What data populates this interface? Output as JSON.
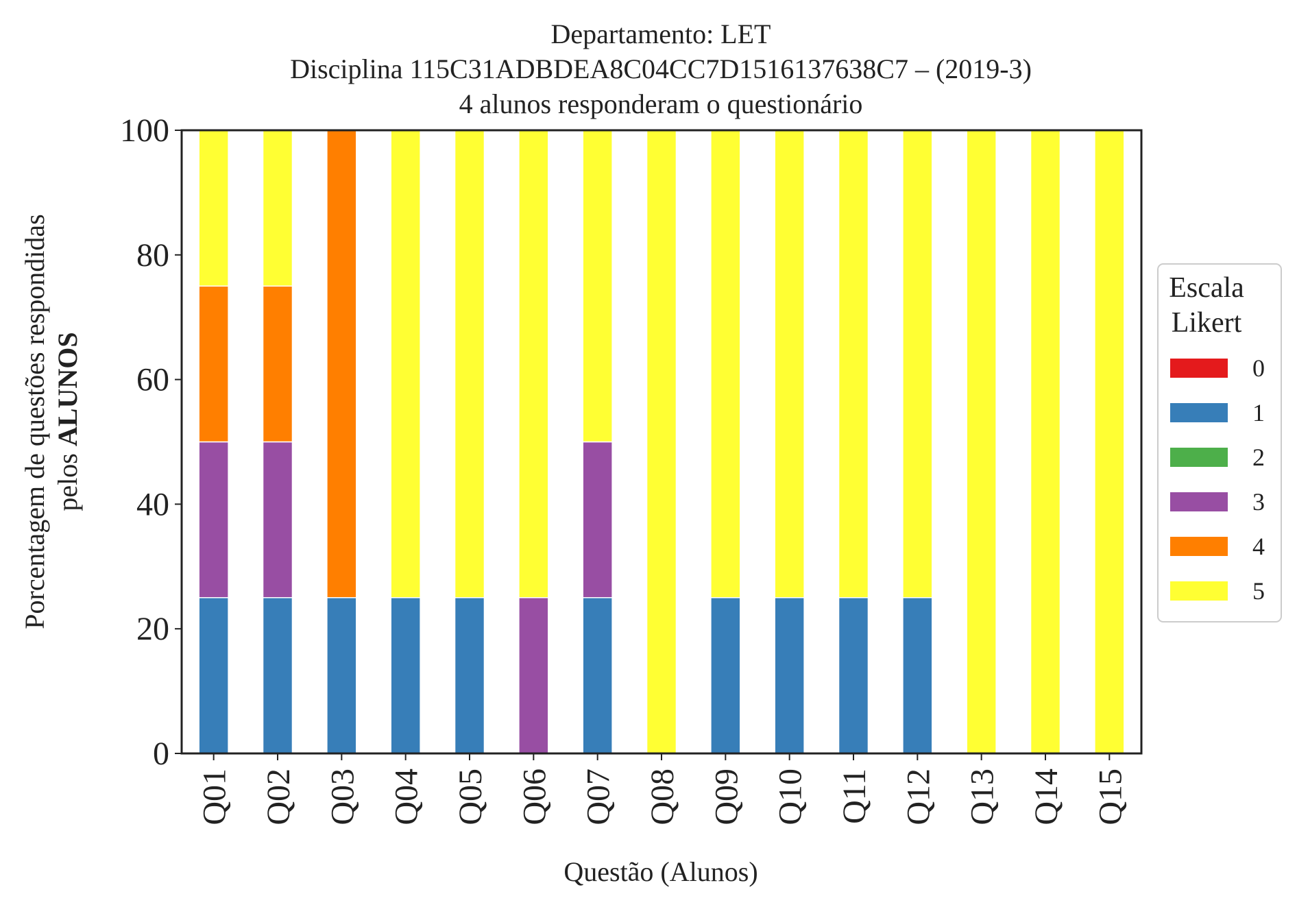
{
  "chart_data": {
    "type": "bar",
    "stacked": true,
    "title_lines": [
      "Departamento: LET",
      "Disciplina 115C31ADBDEA8C04CC7D1516137638C7 – (2019-3)",
      "4 alunos responderam o questionário"
    ],
    "xlabel": "Questão (Alunos)",
    "ylabel_line1": "Porcentagem de questões respondidas",
    "ylabel_line2_prefix": "pelos ",
    "ylabel_line2_bold": "ALUNOS",
    "ylim": [
      0,
      100
    ],
    "yticks": [
      "0",
      "20",
      "40",
      "60",
      "80",
      "100"
    ],
    "grid": false,
    "categories": [
      "Q01",
      "Q02",
      "Q03",
      "Q04",
      "Q05",
      "Q06",
      "Q07",
      "Q08",
      "Q09",
      "Q10",
      "Q11",
      "Q12",
      "Q13",
      "Q14",
      "Q15"
    ],
    "legend": {
      "title_line1": "Escala",
      "title_line2": "Likert",
      "placement": "right"
    },
    "series": [
      {
        "name": "0",
        "color": "#e41a1c",
        "values": [
          0,
          0,
          0,
          0,
          0,
          0,
          0,
          0,
          0,
          0,
          0,
          0,
          0,
          0,
          0
        ]
      },
      {
        "name": "1",
        "color": "#377eb8",
        "values": [
          25,
          25,
          25,
          25,
          25,
          0,
          25,
          0,
          25,
          25,
          25,
          25,
          0,
          0,
          0
        ]
      },
      {
        "name": "2",
        "color": "#4daf4a",
        "values": [
          0,
          0,
          0,
          0,
          0,
          0,
          0,
          0,
          0,
          0,
          0,
          0,
          0,
          0,
          0
        ]
      },
      {
        "name": "3",
        "color": "#984ea3",
        "values": [
          25,
          25,
          0,
          0,
          0,
          25,
          25,
          0,
          0,
          0,
          0,
          0,
          0,
          0,
          0
        ]
      },
      {
        "name": "4",
        "color": "#ff7f00",
        "values": [
          25,
          25,
          75,
          0,
          0,
          0,
          0,
          0,
          0,
          0,
          0,
          0,
          0,
          0,
          0
        ]
      },
      {
        "name": "5",
        "color": "#ffff33",
        "values": [
          25,
          25,
          0,
          75,
          75,
          75,
          50,
          100,
          75,
          75,
          75,
          75,
          100,
          100,
          100
        ]
      }
    ]
  }
}
